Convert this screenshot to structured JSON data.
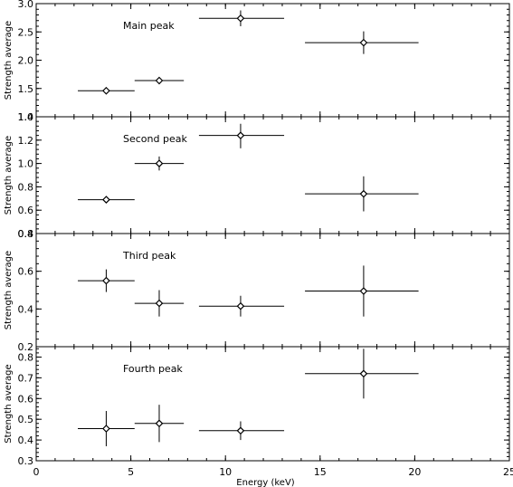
{
  "chart_data": {
    "type": "scatter",
    "xlabel": "Energy  (keV)",
    "xlim": [
      0,
      25
    ],
    "x_ticks": [
      0,
      5,
      10,
      15,
      20,
      25
    ],
    "grid": false,
    "panels": [
      {
        "title": "Main peak",
        "ylabel": "Strength average",
        "ylim": [
          1.0,
          3.0
        ],
        "y_ticks": [
          1.0,
          1.5,
          2.0,
          2.5,
          3.0
        ],
        "y_tick_labels": [
          "1.0",
          "1.5",
          "2.0",
          "2.5",
          "3.0"
        ],
        "points": [
          {
            "x": 3.7,
            "x_err": [
              2.2,
              5.2
            ],
            "y": 1.46,
            "y_err": [
              1.41,
              1.51
            ]
          },
          {
            "x": 6.5,
            "x_err": [
              5.2,
              7.8
            ],
            "y": 1.64,
            "y_err": [
              1.59,
              1.69
            ]
          },
          {
            "x": 10.8,
            "x_err": [
              8.6,
              13.1
            ],
            "y": 2.74,
            "y_err": [
              2.6,
              2.88
            ]
          },
          {
            "x": 17.3,
            "x_err": [
              14.2,
              20.2
            ],
            "y": 2.31,
            "y_err": [
              2.11,
              2.51
            ]
          }
        ]
      },
      {
        "title": "Second peak",
        "ylabel": "Strength average",
        "ylim": [
          0.4,
          1.4
        ],
        "y_ticks": [
          0.4,
          0.6,
          0.8,
          1.0,
          1.2,
          1.4
        ],
        "y_tick_labels": [
          "0.4",
          "0.6",
          "0.8",
          "1.0",
          "1.2",
          "1.4"
        ],
        "points": [
          {
            "x": 3.7,
            "x_err": [
              2.2,
              5.2
            ],
            "y": 0.69,
            "y_err": [
              0.67,
              0.71
            ]
          },
          {
            "x": 6.5,
            "x_err": [
              5.2,
              7.8
            ],
            "y": 1.0,
            "y_err": [
              0.94,
              1.06
            ]
          },
          {
            "x": 10.8,
            "x_err": [
              8.6,
              13.1
            ],
            "y": 1.24,
            "y_err": [
              1.13,
              1.34
            ]
          },
          {
            "x": 17.3,
            "x_err": [
              14.2,
              20.2
            ],
            "y": 0.74,
            "y_err": [
              0.59,
              0.89
            ]
          }
        ]
      },
      {
        "title": "Third peak",
        "ylabel": "Strength average",
        "ylim": [
          0.2,
          0.8
        ],
        "y_ticks": [
          0.2,
          0.4,
          0.6,
          0.8
        ],
        "y_tick_labels": [
          "0.2",
          "0.4",
          "0.6",
          "0.8"
        ],
        "points": [
          {
            "x": 3.7,
            "x_err": [
              2.2,
              5.2
            ],
            "y": 0.55,
            "y_err": [
              0.49,
              0.61
            ]
          },
          {
            "x": 6.5,
            "x_err": [
              5.2,
              7.8
            ],
            "y": 0.43,
            "y_err": [
              0.36,
              0.5
            ]
          },
          {
            "x": 10.8,
            "x_err": [
              8.6,
              13.1
            ],
            "y": 0.415,
            "y_err": [
              0.36,
              0.47
            ]
          },
          {
            "x": 17.3,
            "x_err": [
              14.2,
              20.2
            ],
            "y": 0.495,
            "y_err": [
              0.36,
              0.63
            ]
          }
        ]
      },
      {
        "title": "Fourth peak",
        "ylabel": "Strength average",
        "ylim": [
          0.3,
          0.85
        ],
        "y_ticks": [
          0.3,
          0.4,
          0.5,
          0.6,
          0.7,
          0.8
        ],
        "y_tick_labels": [
          "0.3",
          "0.4",
          "0.5",
          "0.6",
          "0.7",
          "0.8"
        ],
        "points": [
          {
            "x": 3.7,
            "x_err": [
              2.2,
              5.2
            ],
            "y": 0.455,
            "y_err": [
              0.37,
              0.54
            ]
          },
          {
            "x": 6.5,
            "x_err": [
              5.2,
              7.8
            ],
            "y": 0.48,
            "y_err": [
              0.39,
              0.57
            ]
          },
          {
            "x": 10.8,
            "x_err": [
              8.6,
              13.1
            ],
            "y": 0.445,
            "y_err": [
              0.4,
              0.49
            ]
          },
          {
            "x": 17.3,
            "x_err": [
              14.2,
              20.2
            ],
            "y": 0.72,
            "y_err": [
              0.6,
              0.84
            ]
          }
        ]
      }
    ]
  }
}
